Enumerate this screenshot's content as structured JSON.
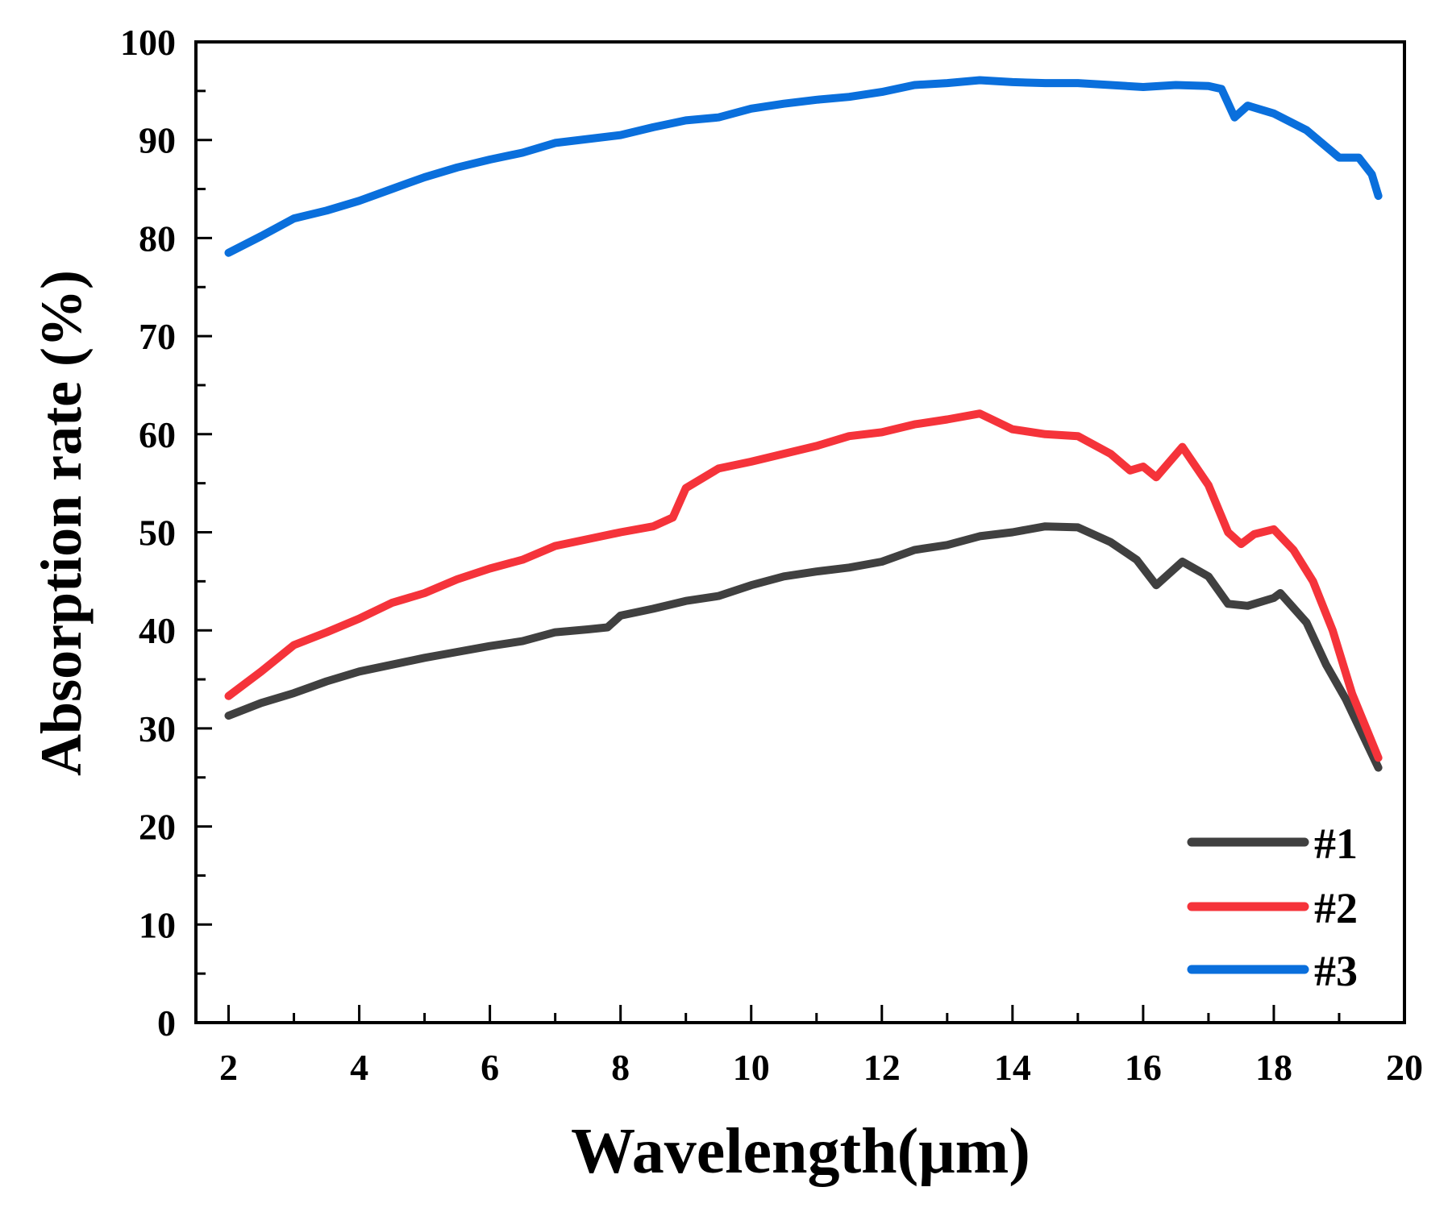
{
  "chart_data": {
    "type": "line",
    "title": "",
    "xlabel": "Wavelength(μm)",
    "ylabel": "Absorption rate (%)",
    "xlim": [
      1.5,
      20
    ],
    "ylim": [
      0,
      100
    ],
    "xticks": [
      2,
      4,
      6,
      8,
      10,
      12,
      14,
      16,
      18,
      20
    ],
    "yticks": [
      0,
      10,
      20,
      30,
      40,
      50,
      60,
      70,
      80,
      90,
      100
    ],
    "grid": false,
    "legend_position": "bottom-right",
    "series": [
      {
        "name": "#1",
        "color": "#404040",
        "x": [
          2,
          2.5,
          3,
          3.5,
          4,
          4.5,
          5,
          5.5,
          6,
          6.5,
          7,
          7.5,
          7.8,
          8,
          8.5,
          9,
          9.5,
          10,
          10.5,
          11,
          11.5,
          12,
          12.5,
          13,
          13.5,
          14,
          14.5,
          15,
          15.5,
          15.9,
          16.2,
          16.6,
          17,
          17.3,
          17.6,
          18,
          18.1,
          18.5,
          18.8,
          19.1,
          19.6
        ],
        "y": [
          31.3,
          32.6,
          33.6,
          34.8,
          35.8,
          36.5,
          37.2,
          37.8,
          38.4,
          38.9,
          39.8,
          40.1,
          40.3,
          41.5,
          42.2,
          43,
          43.5,
          44.6,
          45.5,
          46,
          46.4,
          47,
          48.2,
          48.7,
          49.6,
          50,
          50.6,
          50.5,
          49,
          47.2,
          44.6,
          47,
          45.5,
          42.7,
          42.5,
          43.3,
          43.8,
          40.8,
          36.5,
          33,
          26
        ]
      },
      {
        "name": "#2",
        "color": "#f5333a",
        "x": [
          2,
          2.5,
          3,
          3.5,
          4,
          4.5,
          5,
          5.5,
          6,
          6.5,
          7,
          7.5,
          8,
          8.5,
          8.8,
          9,
          9.5,
          10,
          10.5,
          11,
          11.5,
          12,
          12.5,
          13,
          13.5,
          14,
          14.5,
          15,
          15.5,
          15.8,
          16,
          16.2,
          16.6,
          17,
          17.3,
          17.5,
          17.7,
          18,
          18.3,
          18.6,
          18.9,
          19.2,
          19.6
        ],
        "y": [
          33.3,
          35.8,
          38.5,
          39.8,
          41.2,
          42.8,
          43.8,
          45.2,
          46.3,
          47.2,
          48.6,
          49.3,
          50,
          50.6,
          51.5,
          54.5,
          56.5,
          57.2,
          58,
          58.8,
          59.8,
          60.2,
          61,
          61.5,
          62.1,
          60.5,
          60,
          59.8,
          58,
          56.3,
          56.7,
          55.6,
          58.7,
          54.8,
          50,
          48.8,
          49.8,
          50.3,
          48.2,
          45,
          40,
          33.5,
          27
        ]
      },
      {
        "name": "#3",
        "color": "#0a6fdc",
        "x": [
          2,
          2.5,
          3,
          3.5,
          4,
          4.5,
          5,
          5.5,
          6,
          6.5,
          7,
          7.5,
          8,
          8.5,
          9,
          9.5,
          10,
          10.5,
          11,
          11.5,
          12,
          12.5,
          13,
          13.5,
          14,
          14.5,
          15,
          15.5,
          16,
          16.5,
          17,
          17.2,
          17.4,
          17.6,
          18,
          18.5,
          19,
          19.3,
          19.5,
          19.6
        ],
        "y": [
          78.5,
          80.2,
          82,
          82.8,
          83.8,
          85,
          86.2,
          87.2,
          88,
          88.7,
          89.7,
          90.1,
          90.5,
          91.3,
          92,
          92.3,
          93.2,
          93.7,
          94.1,
          94.4,
          94.9,
          95.6,
          95.8,
          96.1,
          95.9,
          95.8,
          95.8,
          95.6,
          95.4,
          95.6,
          95.5,
          95.2,
          92.3,
          93.5,
          92.7,
          91,
          88.2,
          88.2,
          86.5,
          84.3
        ]
      }
    ]
  }
}
